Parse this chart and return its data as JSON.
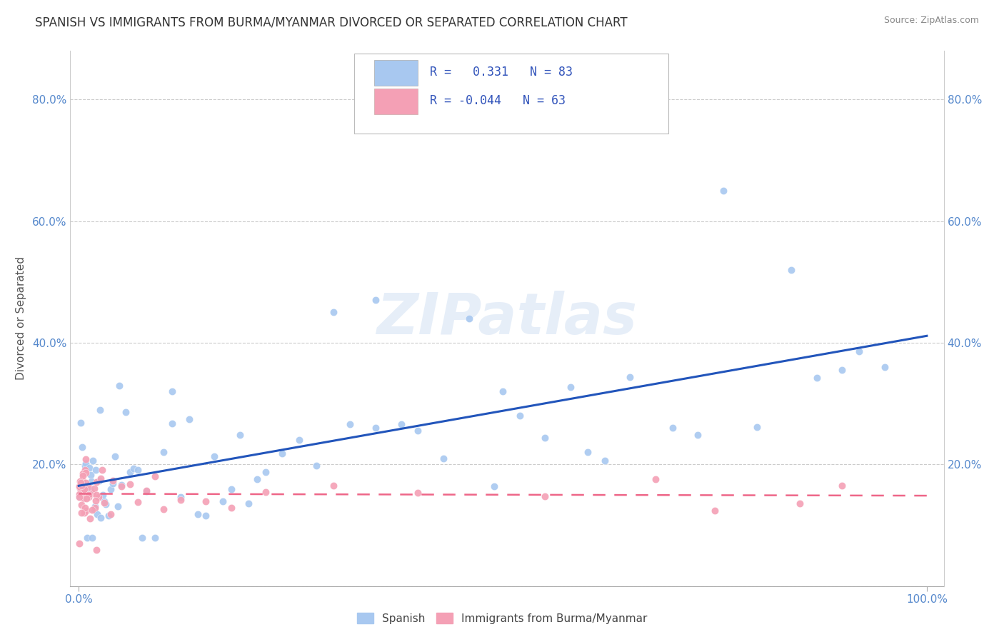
{
  "title": "SPANISH VS IMMIGRANTS FROM BURMA/MYANMAR DIVORCED OR SEPARATED CORRELATION CHART",
  "source_text": "Source: ZipAtlas.com",
  "ylabel": "Divorced or Separated",
  "color_blue": "#A8C8F0",
  "color_pink": "#F4A0B5",
  "trendline_blue": "#2255BB",
  "trendline_pink": "#EE6688",
  "watermark": "ZIPatlas",
  "background_color": "#FFFFFF",
  "title_fontsize": 12,
  "axis_label_fontsize": 11,
  "tick_fontsize": 11
}
